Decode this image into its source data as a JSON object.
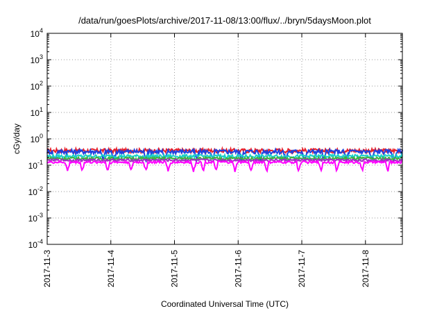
{
  "chart_data": {
    "type": "line",
    "title": "/data/run/goesPlots/archive/2017-11-08/13:00/flux/../bryn/5daysMoon.plot",
    "xlabel": "Coordinated Universal Time (UTC)",
    "ylabel": "cGy/day",
    "yscale": "log",
    "ylim": [
      0.0001,
      10000
    ],
    "xlim": [
      0,
      5.58
    ],
    "grid": true,
    "x_tick_labels": [
      "2017-11-3",
      "2017-11-4",
      "2017-11-5",
      "2017-11-6",
      "2017-11-7",
      "2017-11-8"
    ],
    "y_ticks": [
      {
        "base": "10",
        "exp": "-4",
        "value": 0.0001
      },
      {
        "base": "10",
        "exp": "-3",
        "value": 0.001
      },
      {
        "base": "10",
        "exp": "-2",
        "value": 0.01
      },
      {
        "base": "10",
        "exp": "-1",
        "value": 0.1
      },
      {
        "base": "10",
        "exp": "0",
        "value": 1
      },
      {
        "base": "10",
        "exp": "1",
        "value": 10
      },
      {
        "base": "10",
        "exp": "2",
        "value": 100
      },
      {
        "base": "10",
        "exp": "3",
        "value": 1000
      },
      {
        "base": "10",
        "exp": "4",
        "value": 10000
      }
    ],
    "series": [
      {
        "color": "#e8202a",
        "base": 0.36,
        "amp": 0.18,
        "dips": []
      },
      {
        "color": "#2040e0",
        "base": 0.33,
        "amp": 0.2,
        "dips": [
          0.12,
          0.88,
          1.05,
          1.55,
          1.85,
          2.35,
          2.6,
          3.05,
          3.35,
          3.75,
          4.05,
          4.35,
          4.7,
          5.1,
          5.45
        ]
      },
      {
        "color": "#18d0c8",
        "base": 0.22,
        "amp": 0.14,
        "dips": []
      },
      {
        "color": "#40b040",
        "base": 0.18,
        "amp": 0.12,
        "dips": []
      },
      {
        "color": "#a030c0",
        "base": 0.155,
        "amp": 0.1,
        "dips": []
      },
      {
        "color": "#ff00ff",
        "base": 0.13,
        "amp": 0.1,
        "dips": [
          0.32,
          0.55,
          0.95,
          1.32,
          1.55,
          1.9,
          2.3,
          2.45,
          2.65,
          2.95,
          3.2,
          3.45,
          3.95,
          4.3,
          4.55,
          4.95,
          5.35
        ]
      }
    ]
  }
}
